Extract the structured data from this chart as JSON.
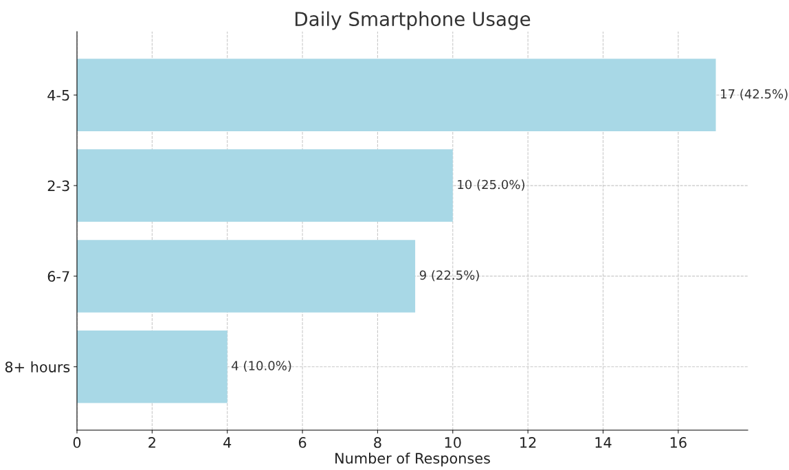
{
  "chart_data": {
    "type": "bar",
    "orientation": "horizontal",
    "title": "Daily Smartphone Usage",
    "xlabel": "Number of Responses",
    "categories": [
      "4-5",
      "2-3",
      "6-7",
      "8+ hours"
    ],
    "values": [
      17,
      10,
      9,
      4
    ],
    "value_labels": [
      "17 (42.5%)",
      "10 (25.0%)",
      "9 (22.5%)",
      "4 (10.0%)"
    ],
    "color": "#a8d8e6",
    "xlim": [
      0,
      17.85
    ],
    "xticks": [
      0,
      2,
      4,
      6,
      8,
      10,
      12,
      14,
      16
    ],
    "grid": true,
    "line_style": "dashed"
  }
}
